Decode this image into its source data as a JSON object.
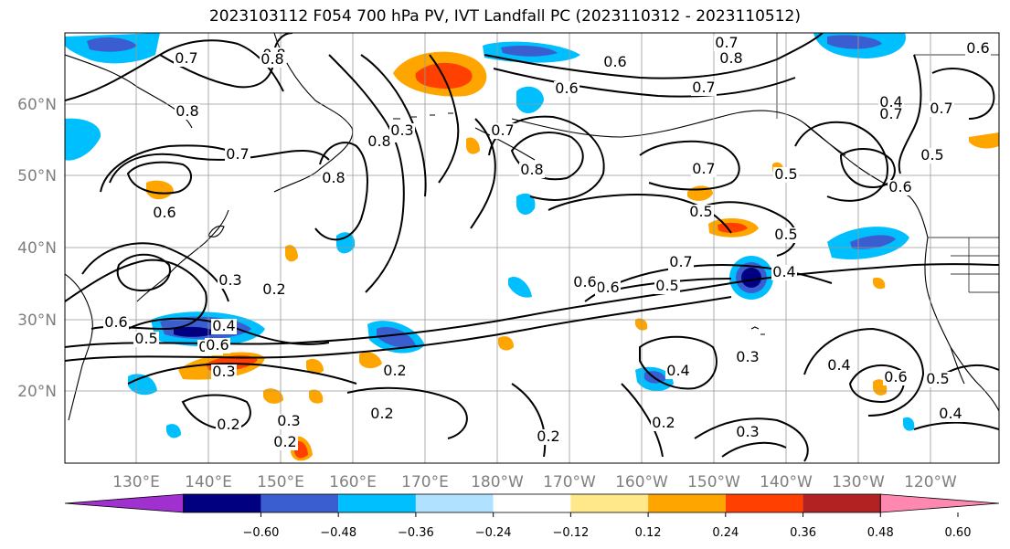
{
  "title": "2023103112 F054 700 hPa PV, IVT Landfall PC (2023110312 - 2023110512)",
  "lat_labels": [
    "60°N",
    "50°N",
    "40°N",
    "30°N",
    "20°N"
  ],
  "lon_labels": [
    "130°E",
    "140°E",
    "150°E",
    "160°E",
    "170°E",
    "180°W",
    "170°W",
    "160°W",
    "150°W",
    "140°W",
    "130°W",
    "120°W"
  ],
  "colorbar": {
    "colors": [
      "#a030d0",
      "#000080",
      "#3a5ed0",
      "#00bfff",
      "#b0e2ff",
      "#ffffff",
      "#ffe88a",
      "#ffa500",
      "#ff4000",
      "#b22222",
      "#ff88b0"
    ],
    "ticks": [
      "−0.60",
      "−0.48",
      "−0.36",
      "−0.24",
      "−0.12",
      "0.12",
      "0.24",
      "0.36",
      "0.48",
      "0.60"
    ]
  },
  "contour_labels": [
    "0.7",
    "0.8",
    "0.7",
    "0.8",
    "0.6",
    "0.8",
    "0.7",
    "0.7",
    "0.8",
    "0.6",
    "0.7",
    "0.8",
    "0.8",
    "0.8",
    "0.7",
    "0.6",
    "0.5",
    "0.5",
    "0.7",
    "0.5",
    "0.6",
    "0.7",
    "0.6",
    "0.5",
    "0.4",
    "0.4",
    "0.6",
    "0.5",
    "0.3",
    "0.2",
    "0.2",
    "0.2",
    "0.2",
    "0.3",
    "0.4",
    "0.3",
    "0.3",
    "0.2",
    "0.4",
    "0.6",
    "0.5",
    "0.3",
    "0.2",
    "0.4",
    "0.5",
    "0.6",
    "0.4",
    "0.2",
    "0.3",
    "0.6",
    "0.7",
    "0.8",
    "0.5",
    "0.6"
  ]
}
